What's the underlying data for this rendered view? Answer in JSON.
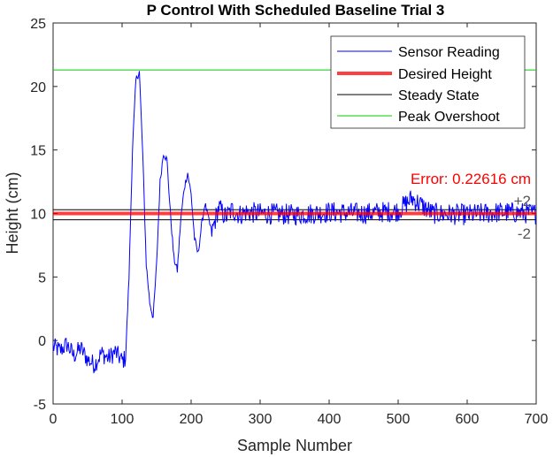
{
  "chart_data": {
    "type": "line",
    "title": "P Control With Scheduled Baseline Trial 3",
    "xlabel": "Sample Number",
    "ylabel": "Height (cm)",
    "xlim": [
      0,
      700
    ],
    "ylim": [
      -5,
      25
    ],
    "xticks": [
      "0",
      "100",
      "200",
      "300",
      "400",
      "500",
      "600",
      "700"
    ],
    "yticks": [
      "-5",
      "0",
      "5",
      "10",
      "15",
      "20",
      "25"
    ],
    "grid": false,
    "legend_position": "top-right",
    "series": [
      {
        "name": "Sensor Reading",
        "color": "#0000ff",
        "x": [
          0,
          10,
          20,
          30,
          40,
          50,
          60,
          70,
          80,
          90,
          100,
          105,
          110,
          115,
          120,
          125,
          130,
          135,
          140,
          145,
          150,
          155,
          160,
          165,
          170,
          175,
          180,
          185,
          190,
          195,
          200,
          205,
          210,
          215,
          220,
          225,
          230,
          240,
          250,
          260,
          270,
          280,
          300,
          350,
          400,
          450,
          500,
          520,
          550,
          600,
          650,
          700
        ],
        "y": [
          -0.5,
          -0.8,
          -0.3,
          -1.2,
          -0.6,
          -1.5,
          -1.9,
          -1.0,
          -1.4,
          -0.9,
          -1.6,
          -1.4,
          5.0,
          15.0,
          20.5,
          21.2,
          14.5,
          6.0,
          3.0,
          1.8,
          6.0,
          12.5,
          14.8,
          14.2,
          10.0,
          6.5,
          5.5,
          9.5,
          12.0,
          13.2,
          11.5,
          8.0,
          6.8,
          9.0,
          10.8,
          9.6,
          8.5,
          10.5,
          9.7,
          10.3,
          9.9,
          10.1,
          10.0,
          9.9,
          10.1,
          10.0,
          10.2,
          11.2,
          10.0,
          9.9,
          10.1,
          10.0
        ]
      },
      {
        "name": "Desired Height",
        "color": "#ff0000",
        "y": 10
      },
      {
        "name": "Steady State",
        "color": "#000000",
        "y": [
          10.3,
          9.5
        ]
      },
      {
        "name": "Peak Overshoot",
        "color": "#00cc00",
        "y": 21.3
      }
    ],
    "annotations": {
      "error_text": "Error: 0.22616 cm",
      "upper_tol": "+2",
      "lower_tol": "-2"
    }
  }
}
